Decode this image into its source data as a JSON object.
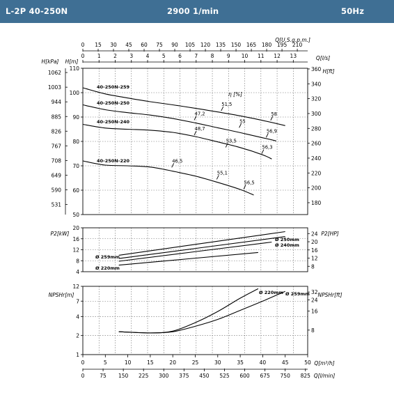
{
  "header": {
    "model": "L-2P 40-250N",
    "speed": "2900 1/min",
    "frequency": "50Hz",
    "bg_color": "#3f6f94"
  },
  "axes": {
    "usgpm": {
      "label": "Q[U.S.g.p.m.]",
      "ticks": [
        "0",
        "15",
        "30",
        "45",
        "60",
        "75",
        "90",
        "105",
        "120",
        "135",
        "150",
        "165",
        "180",
        "195",
        "210"
      ]
    },
    "ls": {
      "label": "Q[l/s]",
      "ticks": [
        "0",
        "1",
        "2",
        "3",
        "4",
        "5",
        "6",
        "7",
        "8",
        "9",
        "10",
        "11",
        "12",
        "13"
      ]
    },
    "m3h": {
      "label": "Q[m³/h]",
      "ticks": [
        "0",
        "5",
        "10",
        "15",
        "20",
        "25",
        "30",
        "35",
        "40",
        "45",
        "50"
      ]
    },
    "lmin": {
      "label": "Q[l/min]",
      "ticks": [
        "0",
        "75",
        "150",
        "225",
        "300",
        "375",
        "450",
        "525",
        "600",
        "675",
        "750",
        "825"
      ]
    },
    "head_m": {
      "label": "H[m]",
      "ticks": [
        "50",
        "60",
        "70",
        "80",
        "90",
        "100",
        "110"
      ]
    },
    "head_kpa": {
      "label": "H[kPa]",
      "ticks": [
        "531",
        "590",
        "649",
        "708",
        "767",
        "826",
        "885",
        "944",
        "1003",
        "1062"
      ]
    },
    "head_ft": {
      "label": "H[ft]",
      "ticks": [
        "180",
        "200",
        "220",
        "240",
        "260",
        "280",
        "300",
        "320",
        "340",
        "360"
      ]
    },
    "power_kw": {
      "label": "P2[kW]",
      "ticks": [
        "4",
        "8",
        "12",
        "16",
        "20"
      ]
    },
    "power_hp": {
      "label": "P2[HP]",
      "ticks": [
        "8",
        "12",
        "16",
        "20",
        "24"
      ]
    },
    "npsh_m": {
      "label": "NPSHr[m]",
      "ticks": [
        "1",
        "2",
        "4",
        "7",
        "12"
      ]
    },
    "npsh_ft": {
      "label": "NPSHr[ft]",
      "ticks": [
        "8",
        "16",
        "24",
        "32"
      ]
    },
    "eta_label": "η [%]"
  },
  "chart_data": [
    {
      "type": "line",
      "title": "",
      "xlabel": "Q[m³/h]",
      "ylabel": "H[m]",
      "xlim": [
        0,
        50
      ],
      "ylim": [
        50,
        110
      ],
      "series": [
        {
          "name": "40-250N-259",
          "x": [
            0,
            5,
            10,
            15,
            20,
            25,
            30,
            35,
            40,
            45
          ],
          "values": [
            102,
            99.5,
            97.8,
            96.3,
            95.0,
            93.6,
            92.1,
            90.5,
            88.6,
            86.5
          ]
        },
        {
          "name": "40-250N-250",
          "x": [
            0,
            5,
            10,
            15,
            20,
            25,
            30,
            35,
            40,
            43
          ],
          "values": [
            95,
            93,
            91.8,
            90.8,
            89.4,
            87.6,
            85.6,
            83.6,
            81.5,
            80.2
          ]
        },
        {
          "name": "40-250N-240",
          "x": [
            0,
            5,
            10,
            15,
            20,
            25,
            30,
            35,
            40,
            42
          ],
          "values": [
            87,
            85.5,
            85.0,
            84.6,
            83.7,
            82.0,
            79.8,
            77.5,
            74.5,
            72.8
          ]
        },
        {
          "name": "40-250N-220",
          "x": [
            0,
            5,
            10,
            15,
            20,
            25,
            30,
            35,
            38
          ],
          "values": [
            72,
            70.3,
            70.0,
            69.5,
            67.8,
            65.8,
            63.2,
            60.3,
            58.0
          ]
        }
      ],
      "efficiency_labels": [
        {
          "text": "51,5",
          "x": 31,
          "y": 93.4
        },
        {
          "text": "58",
          "x": 42,
          "y": 89.5
        },
        {
          "text": "47,2",
          "x": 25,
          "y": 89.6
        },
        {
          "text": "55",
          "x": 35,
          "y": 86.5
        },
        {
          "text": "56,9",
          "x": 41,
          "y": 82.5
        },
        {
          "text": "48,7",
          "x": 25,
          "y": 83.4
        },
        {
          "text": "53,5",
          "x": 32,
          "y": 78.4
        },
        {
          "text": "56,3",
          "x": 40,
          "y": 75.8
        },
        {
          "text": "46,5",
          "x": 20,
          "y": 70.2
        },
        {
          "text": "55,1",
          "x": 30,
          "y": 65.3
        },
        {
          "text": "56,5",
          "x": 36,
          "y": 61.3
        }
      ]
    },
    {
      "type": "line",
      "title": "",
      "xlabel": "Q[m³/h]",
      "ylabel": "P2[kW]",
      "xlim": [
        0,
        50
      ],
      "ylim": [
        4,
        20
      ],
      "series": [
        {
          "name": "Ø 259mm",
          "x": [
            8,
            45
          ],
          "values": [
            10.0,
            18.6
          ]
        },
        {
          "name": "Ø 250mm",
          "x": [
            8,
            45
          ],
          "values": [
            8.8,
            16.8
          ]
        },
        {
          "name": "Ø 240mm",
          "x": [
            8,
            42
          ],
          "values": [
            7.8,
            14.8
          ]
        },
        {
          "name": "Ø 220mm",
          "x": [
            8,
            39
          ],
          "values": [
            6.4,
            11.0
          ]
        }
      ]
    },
    {
      "type": "line",
      "title": "",
      "xlabel": "Q[m³/h]",
      "ylabel": "NPSHr[m]",
      "xlim": [
        0,
        50
      ],
      "ylim": [
        1,
        12
      ],
      "yscale": "log",
      "series": [
        {
          "name": "Ø 220mm",
          "x": [
            8,
            15,
            20,
            25,
            30,
            35,
            39
          ],
          "values": [
            2.3,
            2.2,
            2.35,
            3.2,
            4.8,
            7.8,
            11.0
          ]
        },
        {
          "name": "Ø 259mm",
          "x": [
            8,
            15,
            20,
            25,
            30,
            35,
            40,
            45
          ],
          "values": [
            2.3,
            2.2,
            2.3,
            2.8,
            3.6,
            5.0,
            7.0,
            10.0
          ]
        }
      ]
    }
  ]
}
